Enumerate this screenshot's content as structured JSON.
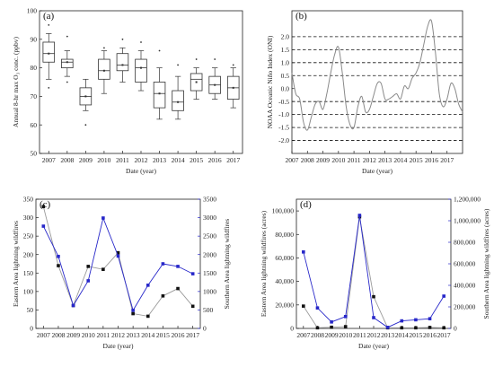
{
  "chart_data": [
    {
      "id": "a",
      "type": "box",
      "panel_label": "(a)",
      "xlabel": "Date (year)",
      "ylabel": "Annual 8-hr max O₃ conc. (ppbv)",
      "categories": [
        "2007",
        "2008",
        "2009",
        "2010",
        "2011",
        "2012",
        "2013",
        "2014",
        "2015",
        "2016",
        "2017"
      ],
      "ylim": [
        50,
        100
      ],
      "yticks": [
        50,
        60,
        70,
        80,
        90,
        100
      ],
      "boxes": [
        {
          "whisker_low": 76,
          "q1": 82,
          "median": 85,
          "mean": 85,
          "q3": 89,
          "whisker_high": 92,
          "outliers": [
            73,
            95
          ]
        },
        {
          "whisker_low": 77,
          "q1": 80,
          "median": 82,
          "mean": 82,
          "q3": 83,
          "whisker_high": 86,
          "outliers": [
            75,
            91
          ]
        },
        {
          "whisker_low": 65,
          "q1": 67,
          "median": 70,
          "mean": 70,
          "q3": 73,
          "whisker_high": 76,
          "outliers": [
            60
          ]
        },
        {
          "whisker_low": 71,
          "q1": 76,
          "median": 79,
          "mean": 79,
          "q3": 83,
          "whisker_high": 86,
          "outliers": [
            87
          ]
        },
        {
          "whisker_low": 75,
          "q1": 79,
          "median": 81,
          "mean": 81,
          "q3": 85,
          "whisker_high": 87,
          "outliers": [
            90
          ]
        },
        {
          "whisker_low": 72,
          "q1": 75,
          "median": 80,
          "mean": 80,
          "q3": 83,
          "whisker_high": 86,
          "outliers": [
            89
          ]
        },
        {
          "whisker_low": 62,
          "q1": 66,
          "median": 71,
          "mean": 71,
          "q3": 75,
          "whisker_high": 80,
          "outliers": [
            86
          ]
        },
        {
          "whisker_low": 62,
          "q1": 65,
          "median": 68,
          "mean": 68,
          "q3": 72,
          "whisker_high": 77,
          "outliers": [
            81
          ]
        },
        {
          "whisker_low": 69,
          "q1": 72,
          "median": 76,
          "mean": 75,
          "q3": 78,
          "whisker_high": 80,
          "outliers": [
            83
          ]
        },
        {
          "whisker_low": 69,
          "q1": 71,
          "median": 74,
          "mean": 74,
          "q3": 77,
          "whisker_high": 80,
          "outliers": [
            83
          ]
        },
        {
          "whisker_low": 66,
          "q1": 69,
          "median": 73,
          "mean": 73,
          "q3": 77,
          "whisker_high": 80,
          "outliers": [
            81
          ]
        }
      ]
    },
    {
      "id": "b",
      "type": "line",
      "panel_label": "(b)",
      "xlabel": "Date (year)",
      "ylabel": "NOAA Oceanic Niño Index (ONI)",
      "x_tick_labels": [
        "2007",
        "2008",
        "2009",
        "2010",
        "2011",
        "2012",
        "2013",
        "2014",
        "2015",
        "2016",
        "2017"
      ],
      "xlim": [
        2007,
        2018
      ],
      "ylim": [
        -2.5,
        3.0
      ],
      "yticks": [
        -2.0,
        -1.5,
        -1.0,
        -0.5,
        0.0,
        0.5,
        1.0,
        1.5,
        2.0
      ],
      "y_tick_labels": [
        "-2.0",
        "-1.5",
        "-1.0",
        "-0.5",
        "0.0",
        "0.5",
        "1.0",
        "1.5",
        "2.0"
      ],
      "dashed_lines": [
        -2.0,
        -1.5,
        -1.0,
        -0.5,
        0.5,
        1.0,
        1.5,
        2.0
      ],
      "x": [
        2007.0,
        2007.25,
        2007.5,
        2007.75,
        2008.0,
        2008.25,
        2008.5,
        2008.75,
        2009.0,
        2009.25,
        2009.5,
        2009.75,
        2010.0,
        2010.25,
        2010.5,
        2010.75,
        2011.0,
        2011.25,
        2011.5,
        2011.75,
        2012.0,
        2012.25,
        2012.5,
        2012.75,
        2013.0,
        2013.25,
        2013.5,
        2013.75,
        2014.0,
        2014.25,
        2014.5,
        2014.75,
        2015.0,
        2015.25,
        2015.5,
        2015.75,
        2016.0,
        2016.25,
        2016.5,
        2016.75,
        2017.0,
        2017.25,
        2017.5,
        2017.75,
        2018.0
      ],
      "values": [
        0.6,
        -0.2,
        -0.4,
        -1.3,
        -1.6,
        -1.1,
        -0.6,
        -0.5,
        -0.8,
        -0.2,
        0.6,
        1.3,
        1.6,
        0.6,
        -0.7,
        -1.4,
        -1.5,
        -0.7,
        -0.3,
        -0.9,
        -0.8,
        -0.3,
        0.2,
        0.2,
        -0.4,
        -0.4,
        -0.3,
        -0.2,
        -0.4,
        0.1,
        0.0,
        0.4,
        0.6,
        1.0,
        1.7,
        2.4,
        2.6,
        1.4,
        -0.2,
        -0.7,
        -0.4,
        0.2,
        0.0,
        -0.6,
        -0.9
      ]
    },
    {
      "id": "c",
      "type": "line",
      "panel_label": "(c)",
      "xlabel": "Date (year)",
      "ylabel_left": "Eastern Area lightning wildfires",
      "ylabel_right": "Southern Area lightning wildfires",
      "categories": [
        "2007",
        "2008",
        "2009",
        "2010",
        "2011",
        "2012",
        "2013",
        "2014",
        "2015",
        "2016",
        "2017"
      ],
      "ylim_left": [
        0,
        350
      ],
      "yticks_left": [
        0,
        50,
        100,
        150,
        200,
        250,
        300,
        350
      ],
      "ylim_right": [
        0,
        3500
      ],
      "yticks_right": [
        0,
        500,
        1000,
        1500,
        2000,
        2500,
        3000,
        3500
      ],
      "series": [
        {
          "axis": "left",
          "color": "#111111",
          "marker": "square",
          "values": [
            330,
            170,
            62,
            168,
            160,
            205,
            40,
            33,
            88,
            108,
            60
          ]
        },
        {
          "axis": "right",
          "color": "#2727c9",
          "marker": "square",
          "values": [
            2770,
            1950,
            620,
            1290,
            2990,
            1960,
            490,
            1170,
            1750,
            1680,
            1480
          ]
        }
      ]
    },
    {
      "id": "d",
      "type": "line",
      "panel_label": "(d)",
      "xlabel": "Date (year)",
      "ylabel_left": "Eastern Area lightning wildfires (acres)",
      "ylabel_right": "Southern Area lightning wildfires (acres)",
      "categories": [
        "2007",
        "2008",
        "2009",
        "2010",
        "2011",
        "2012",
        "2013",
        "2014",
        "2015",
        "2016",
        "2017"
      ],
      "ylim_left": [
        0,
        110000
      ],
      "yticks_left": [
        0,
        20000,
        40000,
        60000,
        80000,
        100000
      ],
      "y_tick_labels_left": [
        "0",
        "20,000",
        "40,000",
        "60,000",
        "80,000",
        "100,000"
      ],
      "ylim_right": [
        0,
        1200000
      ],
      "yticks_right": [
        0,
        200000,
        400000,
        600000,
        800000,
        1000000,
        1200000
      ],
      "y_tick_labels_right": [
        "0",
        "200,000",
        "400,000",
        "600,000",
        "800,000",
        "1,000,000",
        "1,200,000"
      ],
      "series": [
        {
          "axis": "left",
          "color": "#111111",
          "marker": "square",
          "values": [
            19000,
            500,
            1000,
            1500,
            95000,
            27000,
            500,
            500,
            500,
            800,
            500
          ]
        },
        {
          "axis": "right",
          "color": "#2727c9",
          "marker": "square",
          "values": [
            710000,
            190000,
            60000,
            110000,
            1050000,
            100000,
            10000,
            70000,
            80000,
            90000,
            300000
          ]
        }
      ]
    }
  ]
}
